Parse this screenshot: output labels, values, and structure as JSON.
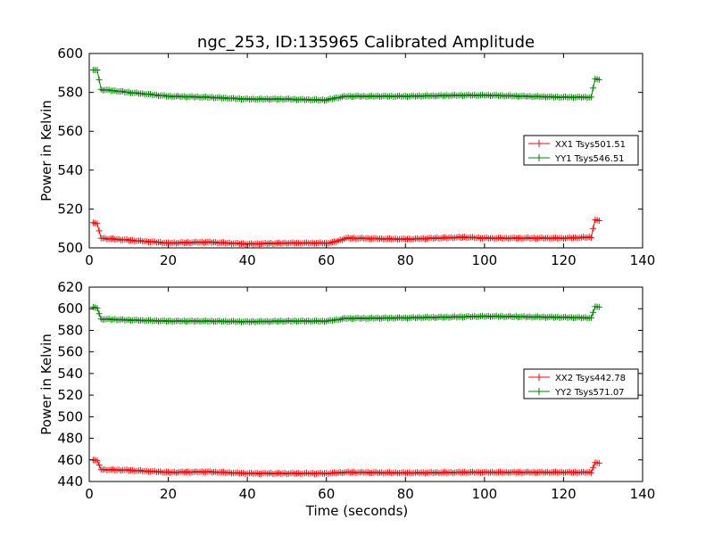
{
  "title": "ngc_253, ID:135965 Calibrated Amplitude",
  "chart_data": [
    {
      "type": "line",
      "title": "ngc_253, ID:135965 Calibrated Amplitude",
      "xlabel": "",
      "ylabel": "Power in Kelvin",
      "xlim": [
        0,
        140
      ],
      "ylim": [
        500,
        600
      ],
      "xticks": [
        0,
        20,
        40,
        60,
        80,
        100,
        120,
        140
      ],
      "yticks": [
        500,
        520,
        540,
        560,
        580,
        600
      ],
      "legend_position": "center-right",
      "grid": false,
      "marker": "plus",
      "series": [
        {
          "name": "XX1 Tsys501.51",
          "color": "#ff0000",
          "points": [
            [
              1,
              513
            ],
            [
              2,
              512.5
            ],
            [
              3,
              505
            ],
            [
              10,
              504
            ],
            [
              20,
              502.5
            ],
            [
              30,
              503
            ],
            [
              40,
              502
            ],
            [
              50,
              502.5
            ],
            [
              60,
              502.5
            ],
            [
              62,
              503
            ],
            [
              65,
              505
            ],
            [
              80,
              504.5
            ],
            [
              95,
              505.5
            ],
            [
              100,
              505
            ],
            [
              120,
              505
            ],
            [
              127,
              505.5
            ],
            [
              128,
              514.5
            ],
            [
              129,
              514
            ]
          ]
        },
        {
          "name": "YY1 Tsys546.51",
          "color": "#008000",
          "points": [
            [
              1,
              591.5
            ],
            [
              2,
              591.5
            ],
            [
              3,
              581.5
            ],
            [
              10,
              580
            ],
            [
              20,
              578
            ],
            [
              30,
              577.5
            ],
            [
              40,
              576.5
            ],
            [
              50,
              576.5
            ],
            [
              60,
              576
            ],
            [
              62,
              577
            ],
            [
              65,
              578
            ],
            [
              80,
              578
            ],
            [
              95,
              578.5
            ],
            [
              100,
              578.5
            ],
            [
              120,
              577.5
            ],
            [
              127,
              577.5
            ],
            [
              128,
              587
            ],
            [
              129,
              586.5
            ]
          ]
        }
      ]
    },
    {
      "type": "line",
      "title": "",
      "xlabel": "Time (seconds)",
      "ylabel": "Power in Kelvin",
      "xlim": [
        0,
        140
      ],
      "ylim": [
        440,
        620
      ],
      "xticks": [
        0,
        20,
        40,
        60,
        80,
        100,
        120,
        140
      ],
      "yticks": [
        440,
        460,
        480,
        500,
        520,
        540,
        560,
        580,
        600,
        620
      ],
      "legend_position": "center-right",
      "grid": false,
      "marker": "plus",
      "series": [
        {
          "name": "XX2 Tsys442.78",
          "color": "#ff0000",
          "points": [
            [
              1,
              460
            ],
            [
              2,
              459.5
            ],
            [
              3,
              451
            ],
            [
              10,
              450.5
            ],
            [
              20,
              448.5
            ],
            [
              30,
              449
            ],
            [
              40,
              447.5
            ],
            [
              50,
              447.5
            ],
            [
              60,
              447.5
            ],
            [
              62,
              448
            ],
            [
              65,
              448.5
            ],
            [
              80,
              448
            ],
            [
              95,
              448.5
            ],
            [
              100,
              448.5
            ],
            [
              120,
              448.5
            ],
            [
              127,
              448.5
            ],
            [
              128,
              457.5
            ],
            [
              129,
              457
            ]
          ]
        },
        {
          "name": "YY2 Tsys571.07",
          "color": "#008000",
          "points": [
            [
              1,
              601.5
            ],
            [
              2,
              600.5
            ],
            [
              3,
              590.5
            ],
            [
              10,
              589.5
            ],
            [
              20,
              588.5
            ],
            [
              30,
              588.5
            ],
            [
              40,
              588
            ],
            [
              50,
              588.5
            ],
            [
              60,
              588.5
            ],
            [
              62,
              589.5
            ],
            [
              65,
              591
            ],
            [
              80,
              591.5
            ],
            [
              95,
              592.5
            ],
            [
              100,
              593
            ],
            [
              120,
              592
            ],
            [
              127,
              591.5
            ],
            [
              128,
              602
            ],
            [
              129,
              601.5
            ]
          ]
        }
      ]
    }
  ]
}
